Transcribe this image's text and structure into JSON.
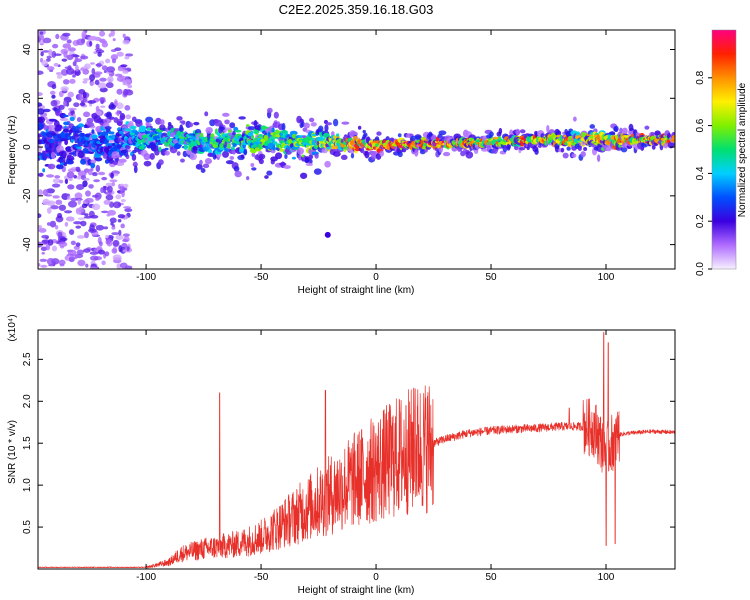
{
  "figure_title": "C2E2.2025.359.16.18.G03",
  "chart_data": [
    {
      "type": "heatmap",
      "title": "C2E2.2025.359.16.18.G03",
      "xlabel": "Height of straight line (km)",
      "ylabel": "Frequency (Hz)",
      "xlim": [
        -147,
        130
      ],
      "ylim": [
        -50,
        48
      ],
      "xticks": [
        -100,
        -50,
        0,
        50,
        100
      ],
      "xtick_labels": [
        "-100",
        "-50",
        "0",
        "50",
        "100"
      ],
      "yticks": [
        -40,
        -20,
        0,
        20,
        40
      ],
      "ytick_labels": [
        "-40",
        "-20",
        "0",
        "20",
        "40"
      ],
      "colorbar": {
        "label": "Normalized spectral amplitude",
        "range": [
          0,
          1
        ],
        "ticks": [
          0,
          0.2,
          0.4,
          0.6,
          0.8
        ],
        "tick_labels": [
          "0.0",
          "0.2",
          "0.4",
          "0.6",
          "0.8"
        ],
        "colors": [
          "#f8f0ff",
          "#b06cff",
          "#3a00e0",
          "#0050ff",
          "#00d0ff",
          "#00e070",
          "#7ff000",
          "#fff000",
          "#ff9000",
          "#ff2000",
          "#ff0080"
        ]
      },
      "ridge": [
        {
          "x": -147,
          "f": 2,
          "amp": 0.3,
          "spread": 12,
          "width": 5
        },
        {
          "x": -110,
          "f": 3,
          "amp": 0.35,
          "spread": 6,
          "width": 4
        },
        {
          "x": -100,
          "f": 4,
          "amp": 0.45,
          "spread": 4,
          "width": 4
        },
        {
          "x": -75,
          "f": 2,
          "amp": 0.5,
          "spread": 4,
          "width": 4
        },
        {
          "x": -50,
          "f": 3,
          "amp": 0.55,
          "spread": 5,
          "width": 5
        },
        {
          "x": -25,
          "f": 2,
          "amp": 0.6,
          "spread": 4,
          "width": 4
        },
        {
          "x": -10,
          "f": 1.5,
          "amp": 0.8,
          "spread": 2,
          "width": 2.5
        },
        {
          "x": 0,
          "f": 0.5,
          "amp": 0.9,
          "spread": 1,
          "width": 2
        },
        {
          "x": 25,
          "f": 1.5,
          "amp": 0.9,
          "spread": 1,
          "width": 2
        },
        {
          "x": 50,
          "f": 2,
          "amp": 0.75,
          "spread": 1,
          "width": 2.5
        },
        {
          "x": 75,
          "f": 3,
          "amp": 0.85,
          "spread": 1,
          "width": 2.5
        },
        {
          "x": 95,
          "f": 3,
          "amp": 0.7,
          "spread": 3,
          "width": 3
        },
        {
          "x": 110,
          "f": 3,
          "amp": 0.85,
          "spread": 1,
          "width": 2.5
        },
        {
          "x": 130,
          "f": 3,
          "amp": 0.9,
          "spread": 1,
          "width": 2.5
        }
      ]
    },
    {
      "type": "line",
      "xlabel": "Height of straight line (km)",
      "ylabel": "SNR (10 * v/v)",
      "y_multiplier": "(x10⁴)",
      "xlim": [
        -147,
        130
      ],
      "ylim": [
        0,
        2.85
      ],
      "xticks": [
        -100,
        -50,
        0,
        50,
        100
      ],
      "xtick_labels": [
        "-100",
        "-50",
        "0",
        "50",
        "100"
      ],
      "yticks": [
        0.5,
        1.0,
        1.5,
        2.0,
        2.5
      ],
      "ytick_labels": [
        "0.5",
        "1.0",
        "1.5",
        "2.0",
        "2.5"
      ],
      "series_color": "#e8302a",
      "envelope_x": [
        -147,
        -100,
        -90,
        -85,
        -75,
        -60,
        -50,
        -40,
        -30,
        -20,
        -10,
        0,
        10,
        20,
        30,
        40,
        50,
        60,
        70,
        80,
        90,
        95,
        100,
        105,
        110,
        120,
        130
      ],
      "envelope_y": [
        0.02,
        0.02,
        0.08,
        0.18,
        0.24,
        0.3,
        0.38,
        0.55,
        0.72,
        0.88,
        1.05,
        1.2,
        1.35,
        1.45,
        1.55,
        1.62,
        1.65,
        1.67,
        1.68,
        1.7,
        1.7,
        1.68,
        1.4,
        1.6,
        1.62,
        1.64,
        1.63
      ],
      "spikes": [
        {
          "x": -68,
          "y": 2.1
        },
        {
          "x": -22,
          "y": 2.13
        },
        {
          "x": 13,
          "y": 1.95
        },
        {
          "x": 17,
          "y": 2.15
        },
        {
          "x": 84,
          "y": 1.92
        },
        {
          "x": 99,
          "y": 2.82
        },
        {
          "x": 100,
          "y": 0.28
        },
        {
          "x": 101,
          "y": 2.7
        },
        {
          "x": 104,
          "y": 0.3
        }
      ]
    }
  ]
}
